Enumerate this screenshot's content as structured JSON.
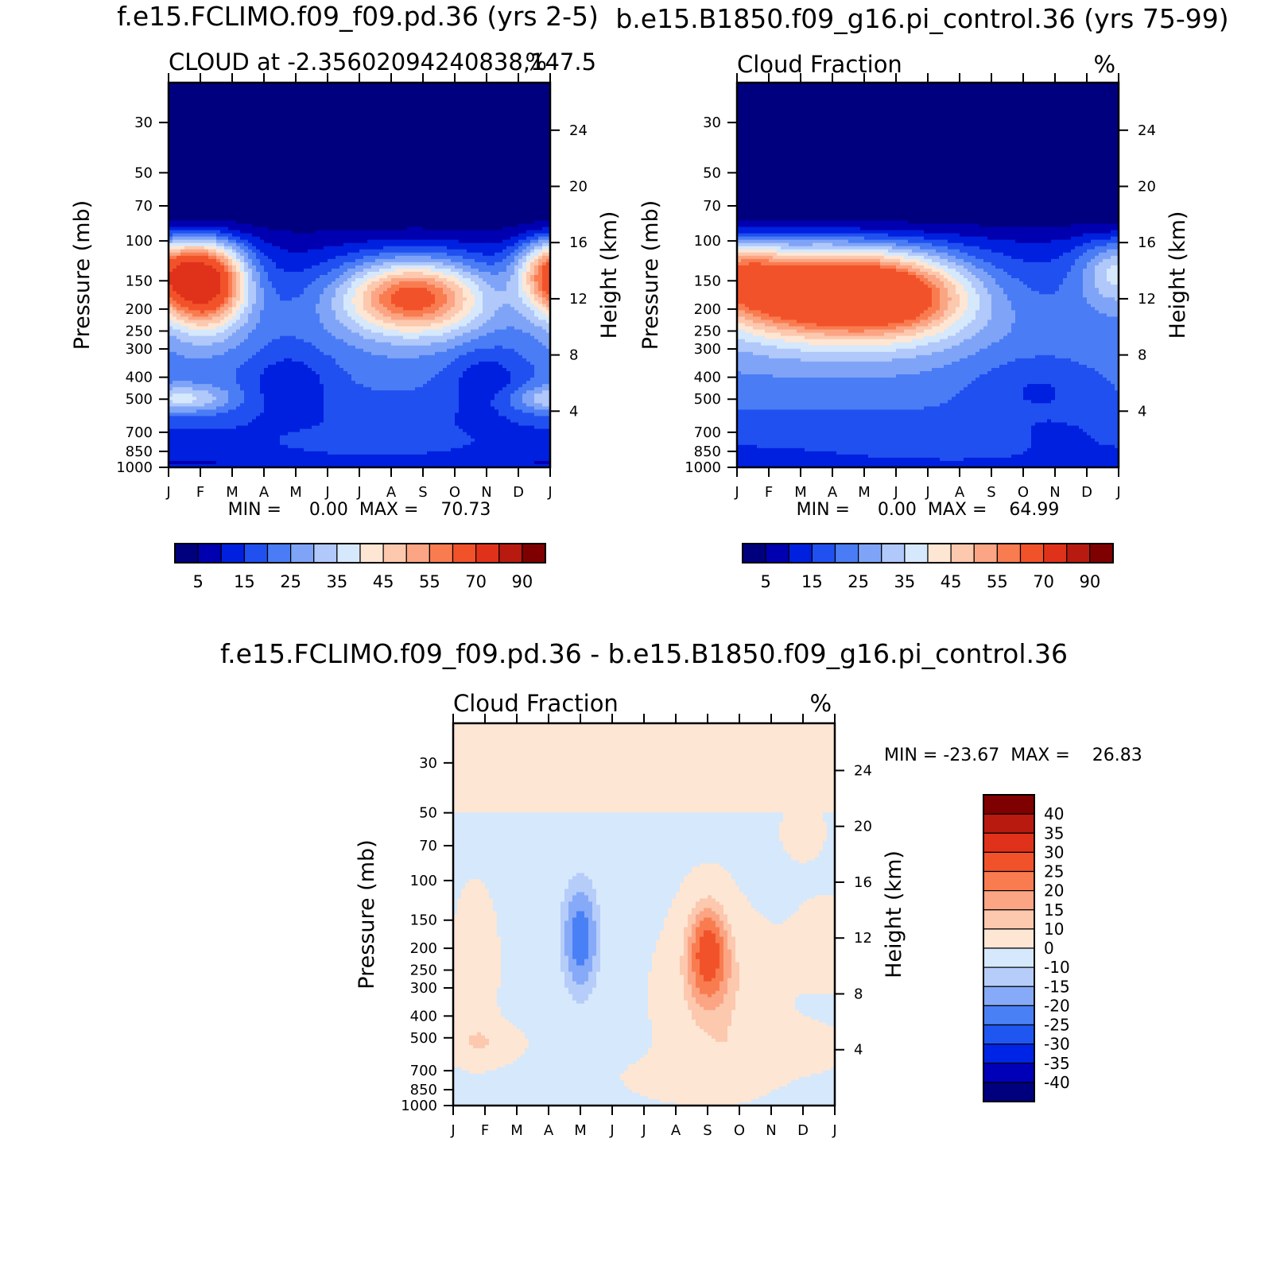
{
  "chart_data": [
    {
      "type": "heatmap",
      "title": "f.e15.FCLIMO.f09_f09.pd.36 (yrs 2-5)",
      "subtitle_left": "CLOUD at -2.35602094240838,147.5",
      "subtitle_right": "%",
      "ylabel": "Pressure (mb)",
      "ylabel_right": "Height (km)",
      "x_ticks": [
        "J",
        "F",
        "M",
        "A",
        "M",
        "J",
        "J",
        "A",
        "S",
        "O",
        "N",
        "D",
        "J"
      ],
      "y_ticks": [
        30,
        50,
        70,
        100,
        150,
        200,
        250,
        300,
        400,
        500,
        700,
        850,
        1000
      ],
      "y_right_ticks": [
        24,
        20,
        16,
        12,
        8,
        4
      ],
      "y_scale": "log",
      "ylim": [
        1000,
        20
      ],
      "stats": "MIN =     0.00  MAX =    70.73",
      "colorbar_labels": [
        "5",
        "15",
        "25",
        "35",
        "45",
        "55",
        "70",
        "90"
      ],
      "levels": [
        0,
        5,
        10,
        15,
        20,
        25,
        30,
        35,
        40,
        45,
        50,
        55,
        60,
        70,
        80,
        90
      ],
      "colors": [
        "#00007f",
        "#0000b0",
        "#0020e0",
        "#2050f0",
        "#4a7cf5",
        "#7fa4f7",
        "#b0c8fa",
        "#d6e8fb",
        "#fde6d4",
        "#fcc8ae",
        "#fba584",
        "#f97c50",
        "#f2522a",
        "#e0321a",
        "#b81a10",
        "#7f0000"
      ],
      "lat": -2.35602094240838,
      "lon": 147.5,
      "stats_min": 0.0,
      "stats_max": 70.73,
      "features": [
        {
          "kind": "max",
          "month": 1.0,
          "p": 145,
          "value": 70
        },
        {
          "kind": "max",
          "month": 8.0,
          "p": 180,
          "value": 58
        },
        {
          "kind": "max",
          "month": 12.0,
          "p": 135,
          "value": 60
        },
        {
          "kind": "min",
          "month": 3.7,
          "p": 420,
          "value": 12
        },
        {
          "kind": "min",
          "month": 10.0,
          "p": 420,
          "value": 12
        }
      ]
    },
    {
      "type": "heatmap",
      "title": "b.e15.B1850.f09_g16.pi_control.36 (yrs 75-99)",
      "subtitle_left": "Cloud Fraction",
      "subtitle_right": "%",
      "ylabel": "Pressure (mb)",
      "ylabel_right": "Height (km)",
      "x_ticks": [
        "J",
        "F",
        "M",
        "A",
        "M",
        "J",
        "J",
        "A",
        "S",
        "O",
        "N",
        "D",
        "J"
      ],
      "y_ticks": [
        30,
        50,
        70,
        100,
        150,
        200,
        250,
        300,
        400,
        500,
        700,
        850,
        1000
      ],
      "y_right_ticks": [
        24,
        20,
        16,
        12,
        8,
        4
      ],
      "y_scale": "log",
      "ylim": [
        1000,
        20
      ],
      "stats": "MIN =     0.00  MAX =    64.99",
      "colorbar_labels": [
        "5",
        "15",
        "25",
        "35",
        "45",
        "55",
        "70",
        "90"
      ],
      "levels": [
        0,
        5,
        10,
        15,
        20,
        25,
        30,
        35,
        40,
        45,
        50,
        55,
        60,
        70,
        80,
        90
      ],
      "colors": [
        "#00007f",
        "#0000b0",
        "#0020e0",
        "#2050f0",
        "#4a7cf5",
        "#7fa4f7",
        "#b0c8fa",
        "#d6e8fb",
        "#fde6d4",
        "#fcc8ae",
        "#fba584",
        "#f97c50",
        "#f2522a",
        "#e0321a",
        "#b81a10",
        "#7f0000"
      ],
      "stats_min": 0.0,
      "stats_max": 64.99
    },
    {
      "type": "heatmap",
      "title": "f.e15.FCLIMO.f09_f09.pd.36 - b.e15.B1850.f09_g16.pi_control.36",
      "subtitle_left": "Cloud Fraction",
      "subtitle_right": "%",
      "ylabel": "Pressure (mb)",
      "ylabel_right": "Height (km)",
      "x_ticks": [
        "J",
        "F",
        "M",
        "A",
        "M",
        "J",
        "J",
        "A",
        "S",
        "O",
        "N",
        "D",
        "J"
      ],
      "y_ticks": [
        30,
        50,
        70,
        100,
        150,
        200,
        250,
        300,
        400,
        500,
        700,
        850,
        1000
      ],
      "y_right_ticks": [
        24,
        20,
        16,
        12,
        8,
        4
      ],
      "y_scale": "log",
      "ylim": [
        1000,
        20
      ],
      "stats": "MIN = -23.67  MAX =    26.83",
      "colorbar_labels": [
        "40",
        "35",
        "30",
        "25",
        "20",
        "15",
        "10",
        "0",
        "-10",
        "-15",
        "-20",
        "-25",
        "-30",
        "-35",
        "-40"
      ],
      "levels": [
        -40,
        -35,
        -30,
        -25,
        -20,
        -15,
        -10,
        0,
        10,
        15,
        20,
        25,
        30,
        35,
        40
      ],
      "colors": [
        "#00007f",
        "#0000b8",
        "#0024e6",
        "#1f56f2",
        "#4a80f6",
        "#86aaf8",
        "#b6cdfa",
        "#d6e8fb",
        "#fde6d4",
        "#fcc8ae",
        "#fba584",
        "#f97c50",
        "#f2522a",
        "#e0321a",
        "#b81a10",
        "#7f0000"
      ],
      "stats_min": -23.67,
      "stats_max": 26.83
    }
  ]
}
